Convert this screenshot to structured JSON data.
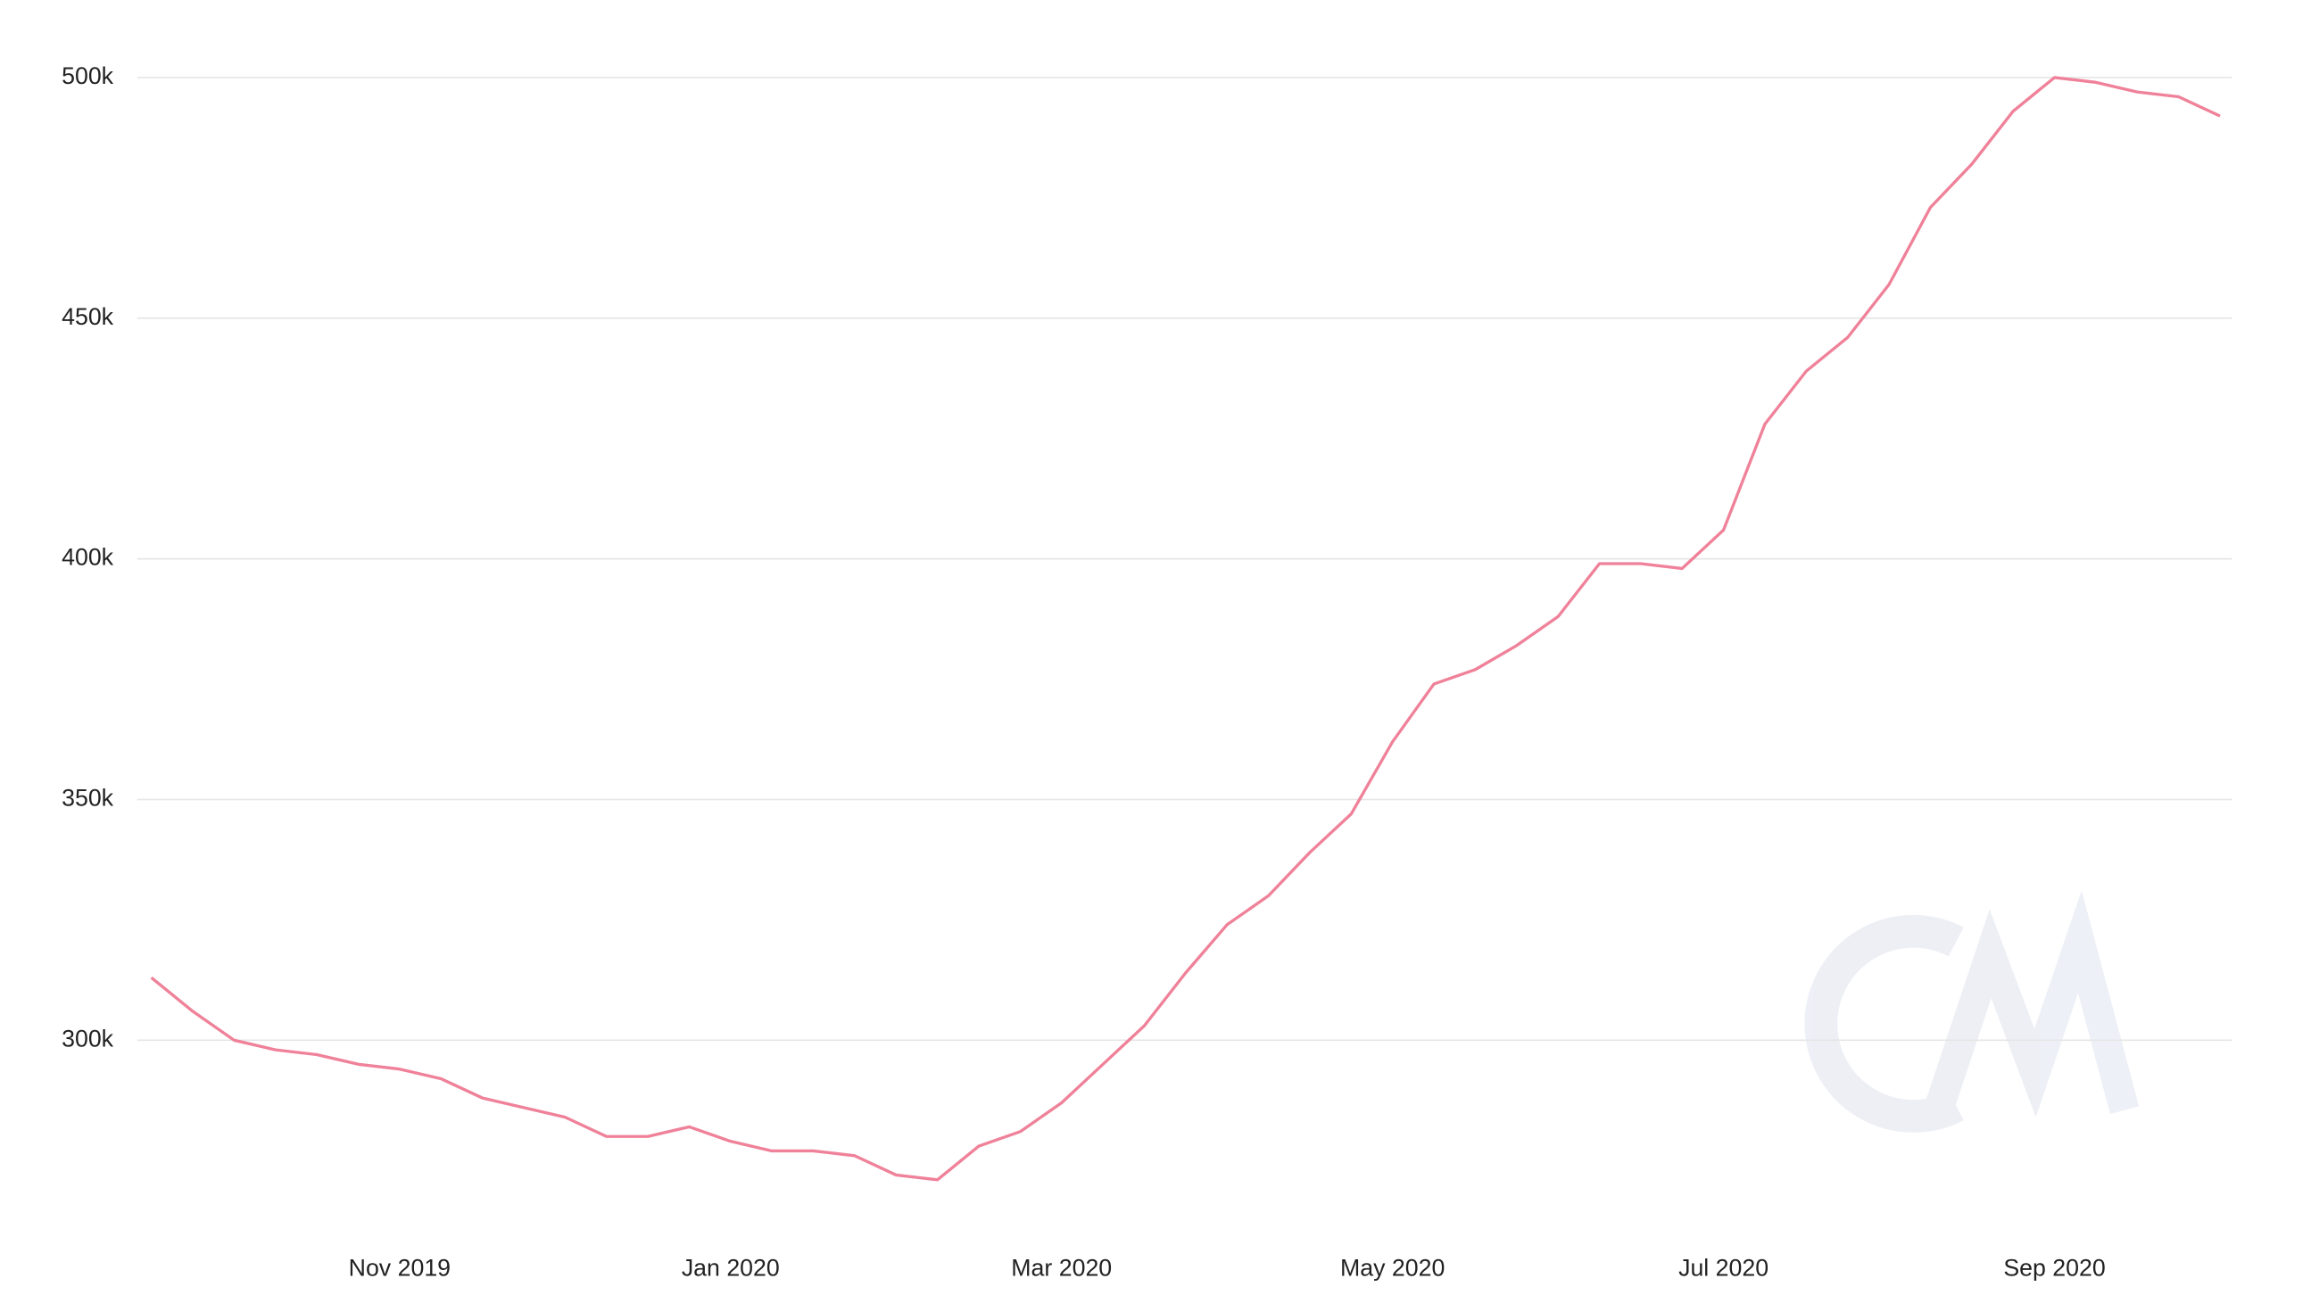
{
  "chart_data": {
    "type": "line",
    "categories": [
      null,
      null,
      null,
      null,
      null,
      null,
      "Nov 2019",
      null,
      null,
      null,
      null,
      null,
      null,
      null,
      "Jan 2020",
      null,
      null,
      null,
      null,
      null,
      null,
      null,
      "Mar 2020",
      null,
      null,
      null,
      null,
      null,
      null,
      null,
      "May 2020",
      null,
      null,
      null,
      null,
      null,
      null,
      null,
      "Jul 2020",
      null,
      null,
      null,
      null,
      null,
      null,
      null,
      "Sep 2020",
      null,
      null,
      null,
      null
    ],
    "series": [
      {
        "color": "#ef8199",
        "values": [
          313000,
          306000,
          300000,
          298000,
          297000,
          295000,
          294000,
          292000,
          288000,
          286000,
          284000,
          280000,
          280000,
          282000,
          279000,
          277000,
          277000,
          276000,
          272000,
          271000,
          278000,
          281000,
          287000,
          295000,
          303000,
          314000,
          324000,
          330000,
          339000,
          347000,
          362000,
          374000,
          377000,
          382000,
          388000,
          399000,
          399000,
          398000,
          406000,
          428000,
          439000,
          446000,
          457000,
          473000,
          482000,
          493000,
          500000,
          499000,
          497000,
          496000,
          492000
        ]
      }
    ],
    "ylim": [
      264000,
      504000
    ],
    "yticks": [
      {
        "value": 300000,
        "label": "300k"
      },
      {
        "value": 350000,
        "label": "350k"
      },
      {
        "value": 400000,
        "label": "400k"
      },
      {
        "value": 450000,
        "label": "450k"
      },
      {
        "value": 500000,
        "label": "500k"
      }
    ],
    "grid": true
  }
}
